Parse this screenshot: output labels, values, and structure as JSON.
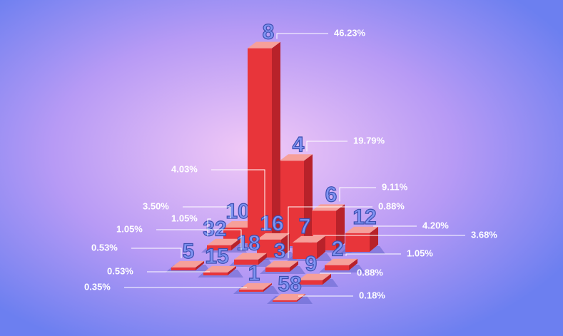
{
  "chart_data": {
    "type": "bar3d",
    "categories": [
      "8",
      "4",
      "6",
      "16",
      "3",
      "10",
      "32",
      "18",
      "12",
      "7",
      "2",
      "5",
      "15",
      "1",
      "9",
      "58"
    ],
    "values": [
      46.23,
      19.79,
      9.11,
      4.03,
      0.88,
      3.5,
      1.05,
      1.05,
      4.2,
      3.68,
      1.05,
      0.53,
      0.53,
      0.35,
      0.88,
      0.18
    ],
    "value_labels": [
      "46.23%",
      "19.79%",
      "9.11%",
      "4.03%",
      "0.88%",
      "3.50%",
      "1.05%",
      "1.05%",
      "4.20%",
      "3.68%",
      "1.05%",
      "0.53%",
      "0.53%",
      "0.35%",
      "0.88%",
      "0.18%"
    ],
    "color": "#e8353a"
  }
}
